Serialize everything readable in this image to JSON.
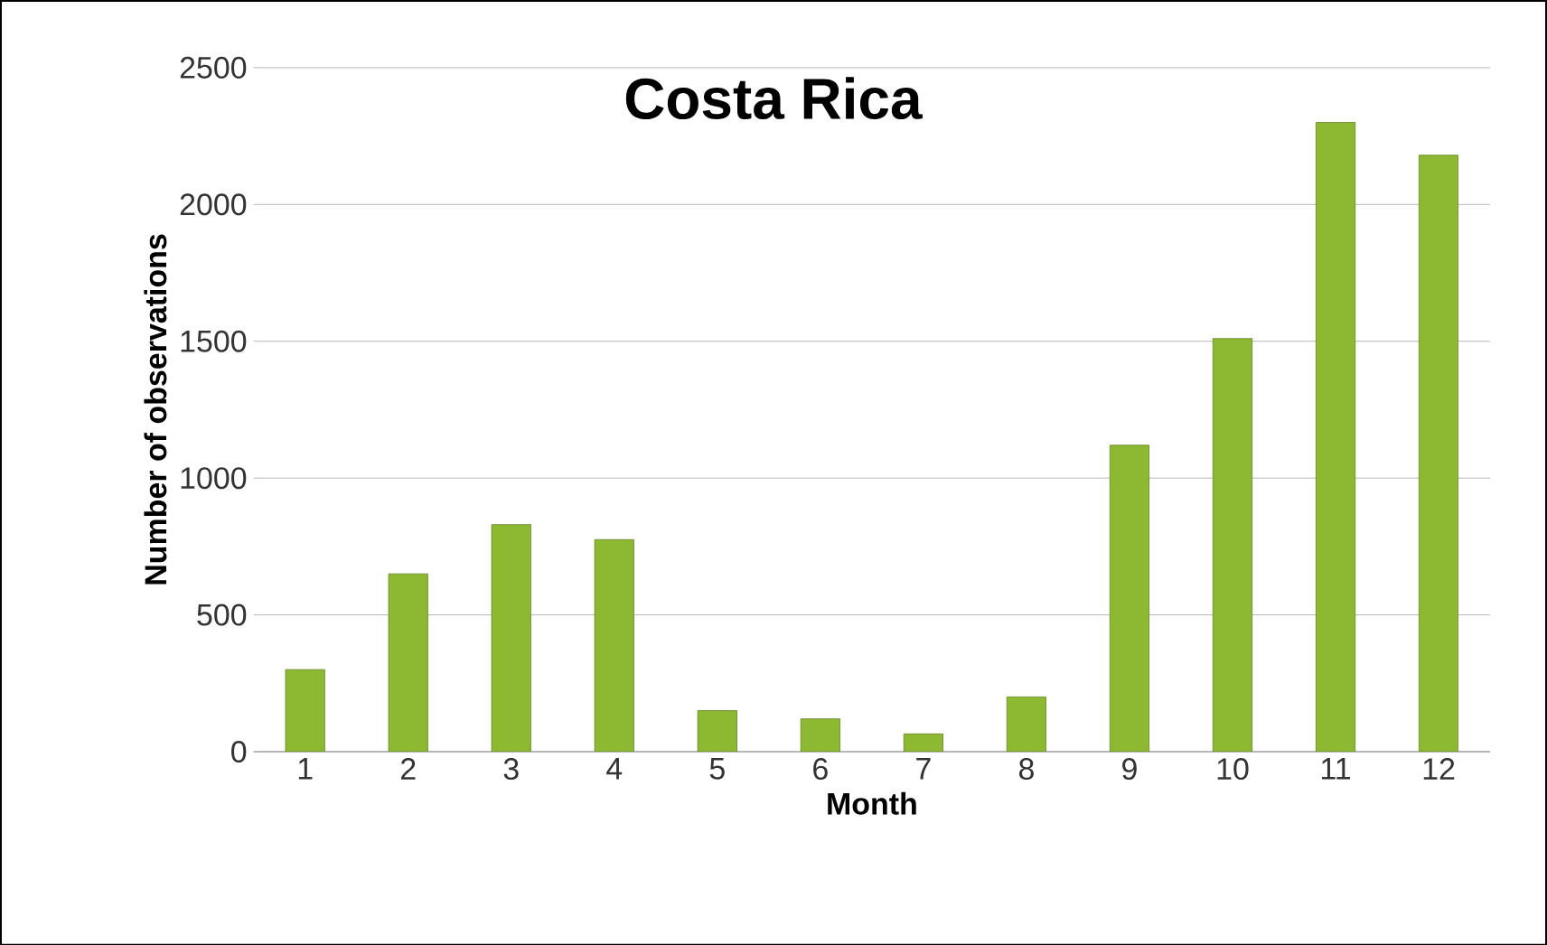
{
  "chart_data": {
    "type": "bar",
    "title": "Costa Rica",
    "xlabel": "Month",
    "ylabel": "Number of observations",
    "categories": [
      "1",
      "2",
      "3",
      "4",
      "5",
      "6",
      "7",
      "8",
      "9",
      "10",
      "11",
      "12"
    ],
    "values": [
      300,
      650,
      830,
      775,
      150,
      120,
      65,
      200,
      1120,
      1510,
      2300,
      2180
    ],
    "color": "#8db832",
    "ylim": [
      0,
      2500
    ],
    "yticks": [
      0,
      500,
      1000,
      1500,
      2000,
      2500
    ],
    "grid": "y"
  }
}
